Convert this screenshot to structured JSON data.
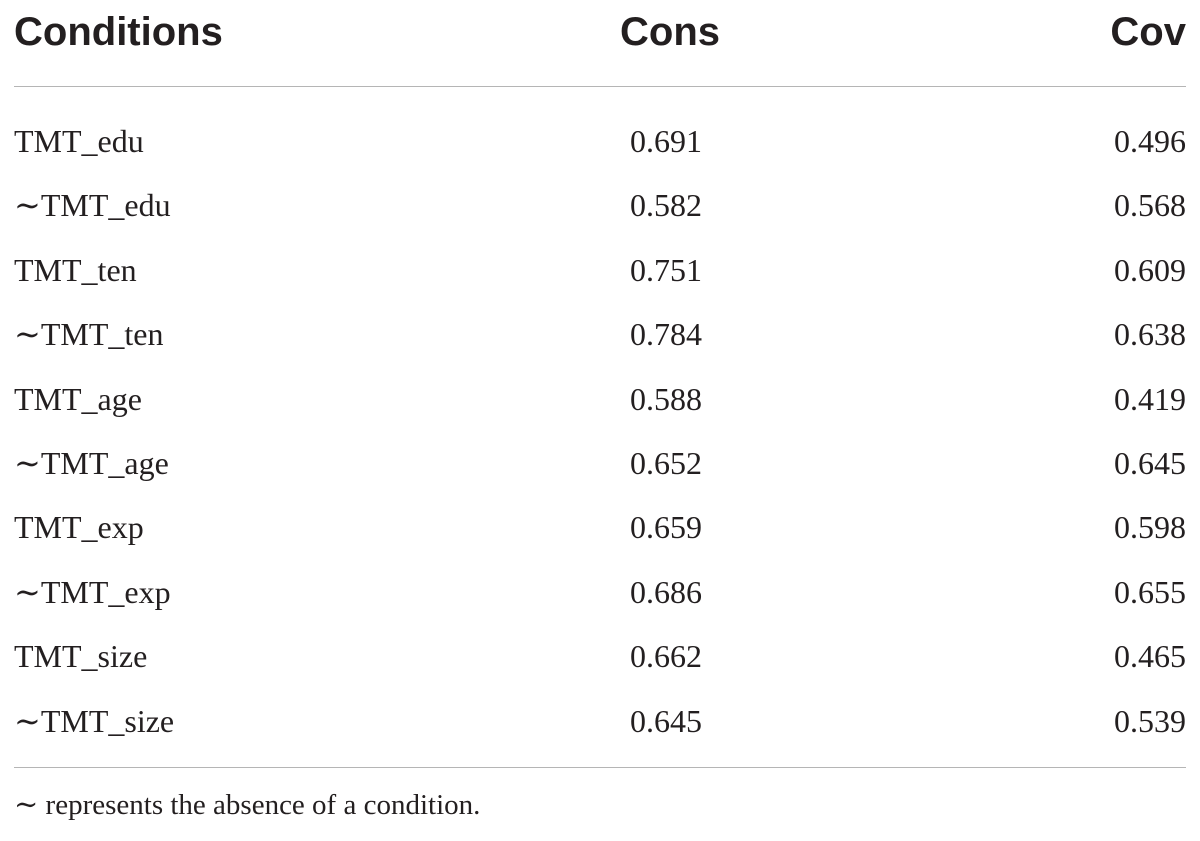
{
  "table": {
    "headers": [
      "Conditions",
      "Cons",
      "Cov"
    ],
    "rows": [
      [
        "TMT_edu",
        "0.691",
        "0.496"
      ],
      [
        "∼TMT_edu",
        "0.582",
        "0.568"
      ],
      [
        "TMT_ten",
        "0.751",
        "0.609"
      ],
      [
        "∼TMT_ten",
        "0.784",
        "0.638"
      ],
      [
        "TMT_age",
        "0.588",
        "0.419"
      ],
      [
        "∼TMT_age",
        "0.652",
        "0.645"
      ],
      [
        "TMT_exp",
        "0.659",
        "0.598"
      ],
      [
        "∼TMT_exp",
        "0.686",
        "0.655"
      ],
      [
        "TMT_size",
        "0.662",
        "0.465"
      ],
      [
        "∼TMT_size",
        "0.645",
        "0.539"
      ]
    ]
  },
  "footnote": "∼ represents the absence of a condition."
}
